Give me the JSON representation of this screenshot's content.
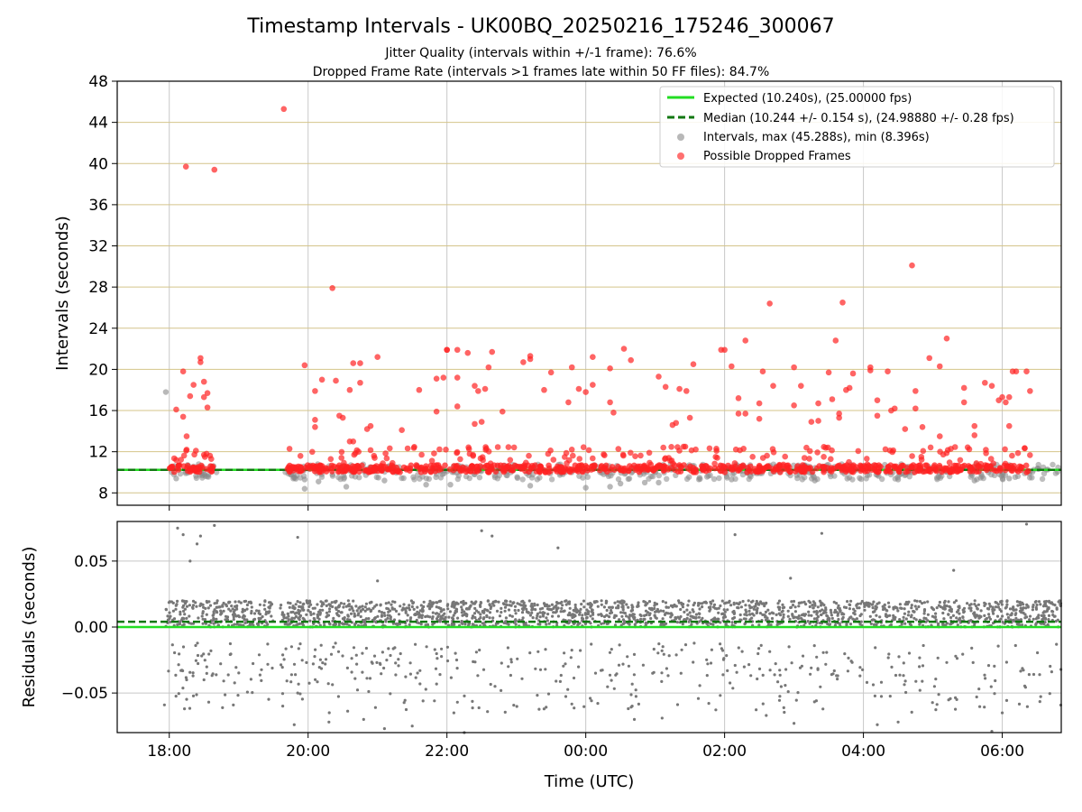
{
  "chart_data": [
    {
      "type": "scatter",
      "title": "Timestamp Intervals - UK00BQ_20250216_175246_300067",
      "subtitle_lines": [
        "Jitter Quality (intervals within +/-1 frame): 76.6%",
        "Dropped Frame Rate (intervals >1 frames late within 50 FF files): 84.7%"
      ],
      "ylabel": "Intervals (seconds)",
      "xlabel": "",
      "x_unit": "hours since 00:00 UTC on 2025-02-16",
      "xlim": [
        17.25,
        30.85
      ],
      "ylim": [
        6.8,
        48
      ],
      "yticks": [
        8,
        12,
        16,
        20,
        24,
        28,
        32,
        36,
        40,
        44,
        48
      ],
      "ytick_labels": [
        "8",
        "12",
        "16",
        "20",
        "24",
        "28",
        "32",
        "36",
        "40",
        "44",
        "48"
      ],
      "xticks": [
        18,
        20,
        22,
        24,
        26,
        28,
        30
      ],
      "grid": true,
      "legend_position": "top-right",
      "legend": [
        {
          "label": "Expected (10.240s), (25.00000 fps)",
          "kind": "line",
          "color": "#22dd22",
          "style": "solid"
        },
        {
          "label": "Median (10.244 +/- 0.154 s), (24.98880 +/- 0.28 fps)",
          "kind": "line",
          "color": "#117711",
          "style": "dashed"
        },
        {
          "label": "Intervals, max (45.288s), min (8.396s)",
          "kind": "marker",
          "color": "#888888"
        },
        {
          "label": "Possible Dropped Frames",
          "kind": "marker",
          "color": "#ff3333"
        }
      ],
      "expected_interval": 10.24,
      "median_interval": 10.244,
      "dropped_points": [
        [
          18.24,
          39.7
        ],
        [
          18.65,
          39.4
        ],
        [
          19.65,
          45.3
        ],
        [
          20.35,
          27.9
        ],
        [
          28.7,
          30.1
        ],
        [
          26.65,
          26.4
        ],
        [
          27.7,
          26.5
        ],
        [
          26.3,
          22.8
        ],
        [
          27.6,
          22.8
        ],
        [
          29.2,
          23.0
        ],
        [
          18.2,
          19.8
        ],
        [
          18.45,
          21.1
        ],
        [
          18.45,
          20.7
        ],
        [
          18.5,
          18.8
        ],
        [
          18.55,
          17.7
        ],
        [
          18.35,
          18.5
        ],
        [
          18.3,
          17.4
        ],
        [
          18.1,
          16.1
        ],
        [
          18.2,
          15.4
        ],
        [
          18.5,
          17.3
        ],
        [
          18.55,
          16.3
        ],
        [
          18.25,
          13.5
        ],
        [
          18.25,
          12.2
        ],
        [
          18.1,
          11.2
        ],
        [
          18.5,
          11.7
        ],
        [
          19.95,
          20.4
        ],
        [
          20.2,
          19.0
        ],
        [
          20.4,
          18.9
        ],
        [
          20.75,
          20.6
        ],
        [
          20.65,
          20.6
        ],
        [
          21.0,
          21.2
        ],
        [
          20.1,
          17.9
        ],
        [
          20.6,
          18.0
        ],
        [
          20.75,
          18.7
        ],
        [
          20.1,
          15.1
        ],
        [
          20.1,
          14.4
        ],
        [
          20.45,
          15.5
        ],
        [
          20.5,
          15.3
        ],
        [
          20.85,
          14.2
        ],
        [
          20.9,
          14.5
        ],
        [
          20.6,
          13.0
        ],
        [
          20.65,
          13.0
        ],
        [
          21.35,
          14.1
        ],
        [
          21.6,
          18.0
        ],
        [
          21.85,
          19.1
        ],
        [
          21.95,
          19.2
        ],
        [
          22.0,
          21.9
        ],
        [
          22.0,
          21.9
        ],
        [
          22.15,
          21.9
        ],
        [
          22.3,
          21.6
        ],
        [
          22.15,
          19.2
        ],
        [
          22.4,
          18.4
        ],
        [
          22.45,
          17.9
        ],
        [
          22.55,
          18.1
        ],
        [
          22.65,
          21.7
        ],
        [
          22.6,
          20.2
        ],
        [
          22.4,
          14.7
        ],
        [
          22.5,
          14.9
        ],
        [
          22.15,
          16.4
        ],
        [
          21.85,
          15.9
        ],
        [
          23.1,
          20.7
        ],
        [
          23.2,
          21.3
        ],
        [
          23.2,
          21.0
        ],
        [
          23.4,
          18.0
        ],
        [
          22.8,
          15.9
        ],
        [
          23.5,
          19.7
        ],
        [
          23.8,
          20.2
        ],
        [
          23.75,
          16.8
        ],
        [
          23.9,
          18.1
        ],
        [
          24.0,
          17.8
        ],
        [
          24.1,
          18.5
        ],
        [
          24.35,
          20.1
        ],
        [
          24.35,
          16.8
        ],
        [
          24.4,
          15.8
        ],
        [
          24.55,
          22.0
        ],
        [
          24.65,
          20.9
        ],
        [
          24.1,
          21.2
        ],
        [
          25.05,
          19.3
        ],
        [
          25.15,
          18.3
        ],
        [
          25.35,
          18.1
        ],
        [
          25.45,
          17.9
        ],
        [
          25.3,
          14.8
        ],
        [
          25.5,
          15.3
        ],
        [
          25.25,
          14.6
        ],
        [
          25.55,
          20.5
        ],
        [
          25.95,
          21.9
        ],
        [
          26.0,
          21.9
        ],
        [
          26.1,
          20.3
        ],
        [
          26.2,
          17.2
        ],
        [
          26.2,
          15.7
        ],
        [
          26.3,
          15.7
        ],
        [
          26.5,
          16.7
        ],
        [
          26.5,
          15.2
        ],
        [
          26.55,
          19.8
        ],
        [
          26.7,
          18.4
        ],
        [
          27.0,
          20.2
        ],
        [
          27.0,
          16.5
        ],
        [
          27.1,
          18.4
        ],
        [
          27.35,
          16.7
        ],
        [
          27.35,
          15.0
        ],
        [
          27.25,
          14.9
        ],
        [
          27.55,
          17.1
        ],
        [
          27.65,
          15.7
        ],
        [
          27.65,
          15.3
        ],
        [
          27.75,
          18.0
        ],
        [
          27.85,
          19.6
        ],
        [
          27.8,
          18.2
        ],
        [
          27.5,
          19.7
        ],
        [
          28.1,
          20.2
        ],
        [
          28.1,
          19.9
        ],
        [
          28.2,
          17.0
        ],
        [
          28.2,
          15.5
        ],
        [
          28.35,
          19.8
        ],
        [
          28.45,
          16.2
        ],
        [
          28.75,
          17.9
        ],
        [
          28.75,
          16.2
        ],
        [
          28.95,
          21.1
        ],
        [
          29.1,
          20.3
        ],
        [
          28.85,
          14.4
        ],
        [
          29.1,
          13.5
        ],
        [
          29.45,
          18.2
        ],
        [
          29.45,
          16.8
        ],
        [
          29.6,
          14.5
        ],
        [
          29.6,
          13.6
        ],
        [
          29.75,
          18.7
        ],
        [
          29.85,
          18.4
        ],
        [
          29.95,
          17.0
        ],
        [
          30.0,
          17.3
        ],
        [
          30.05,
          16.8
        ],
        [
          30.1,
          17.3
        ],
        [
          30.1,
          14.5
        ],
        [
          30.15,
          19.8
        ],
        [
          30.2,
          19.8
        ],
        [
          30.35,
          19.8
        ],
        [
          30.4,
          17.9
        ],
        [
          28.6,
          14.2
        ],
        [
          28.4,
          16.0
        ]
      ],
      "intervals_outliers": [
        [
          17.95,
          17.8
        ],
        [
          18.1,
          9.4
        ],
        [
          19.95,
          8.4
        ],
        [
          20.55,
          8.6
        ],
        [
          21.7,
          8.8
        ],
        [
          22.05,
          8.8
        ],
        [
          23.2,
          8.7
        ],
        [
          24.0,
          8.5
        ],
        [
          24.35,
          8.6
        ],
        [
          24.5,
          8.9
        ],
        [
          24.85,
          9.0
        ],
        [
          25.05,
          9.0
        ],
        [
          26.1,
          9.3
        ],
        [
          27.3,
          9.2
        ],
        [
          28.5,
          9.3
        ],
        [
          29.6,
          9.2
        ],
        [
          30.1,
          9.4
        ],
        [
          19.95,
          9.3
        ],
        [
          20.15,
          9.1
        ],
        [
          21.1,
          9.2
        ]
      ],
      "intervals_segments": [
        {
          "x_start": 17.95,
          "x_end": 18.7
        },
        {
          "x_start": 19.65,
          "x_end": 30.85
        }
      ]
    },
    {
      "type": "scatter",
      "ylabel": "Residuals (seconds)",
      "xlabel": "Time (UTC)",
      "xlim": [
        17.25,
        30.85
      ],
      "ylim": [
        -0.08,
        0.08
      ],
      "yticks": [
        -0.05,
        0.0,
        0.05
      ],
      "ytick_labels": [
        "−0.05",
        "0.00",
        "0.05"
      ],
      "xticks": [
        18,
        20,
        22,
        24,
        26,
        28,
        30
      ],
      "xtick_labels": [
        "18:00",
        "20:00",
        "22:00",
        "00:00",
        "02:00",
        "04:00",
        "06:00"
      ],
      "grid": true,
      "expected_residual": 0.0,
      "median_residual": 0.004,
      "residual_band": [
        0.0,
        0.02
      ],
      "residual_segments": [
        {
          "x_start": 17.95,
          "x_end": 19.5
        },
        {
          "x_start": 19.6,
          "x_end": 30.85
        }
      ],
      "residual_outliers": [
        [
          17.93,
          -0.059
        ],
        [
          18.12,
          0.075
        ],
        [
          18.2,
          0.07
        ],
        [
          18.45,
          0.069
        ],
        [
          18.65,
          0.077
        ],
        [
          18.3,
          0.05
        ],
        [
          18.4,
          0.063
        ],
        [
          18.25,
          -0.04
        ],
        [
          18.5,
          -0.04
        ],
        [
          18.6,
          -0.018
        ],
        [
          19.85,
          0.068
        ],
        [
          19.8,
          -0.074
        ],
        [
          19.85,
          -0.05
        ],
        [
          20.3,
          -0.072
        ],
        [
          20.8,
          -0.07
        ],
        [
          21.1,
          -0.077
        ],
        [
          21.5,
          -0.075
        ],
        [
          22.1,
          -0.065
        ],
        [
          22.5,
          0.073
        ],
        [
          22.65,
          0.069
        ],
        [
          23.6,
          0.06
        ],
        [
          22.25,
          -0.08
        ],
        [
          24.7,
          -0.07
        ],
        [
          25.1,
          -0.069
        ],
        [
          26.15,
          0.07
        ],
        [
          26.6,
          -0.067
        ],
        [
          27.0,
          -0.073
        ],
        [
          27.4,
          0.071
        ],
        [
          28.2,
          -0.074
        ],
        [
          28.5,
          -0.072
        ],
        [
          29.3,
          0.043
        ],
        [
          29.85,
          -0.079
        ],
        [
          30.0,
          -0.065
        ],
        [
          30.35,
          0.078
        ],
        [
          21.0,
          0.035
        ],
        [
          26.95,
          0.037
        ]
      ]
    }
  ]
}
